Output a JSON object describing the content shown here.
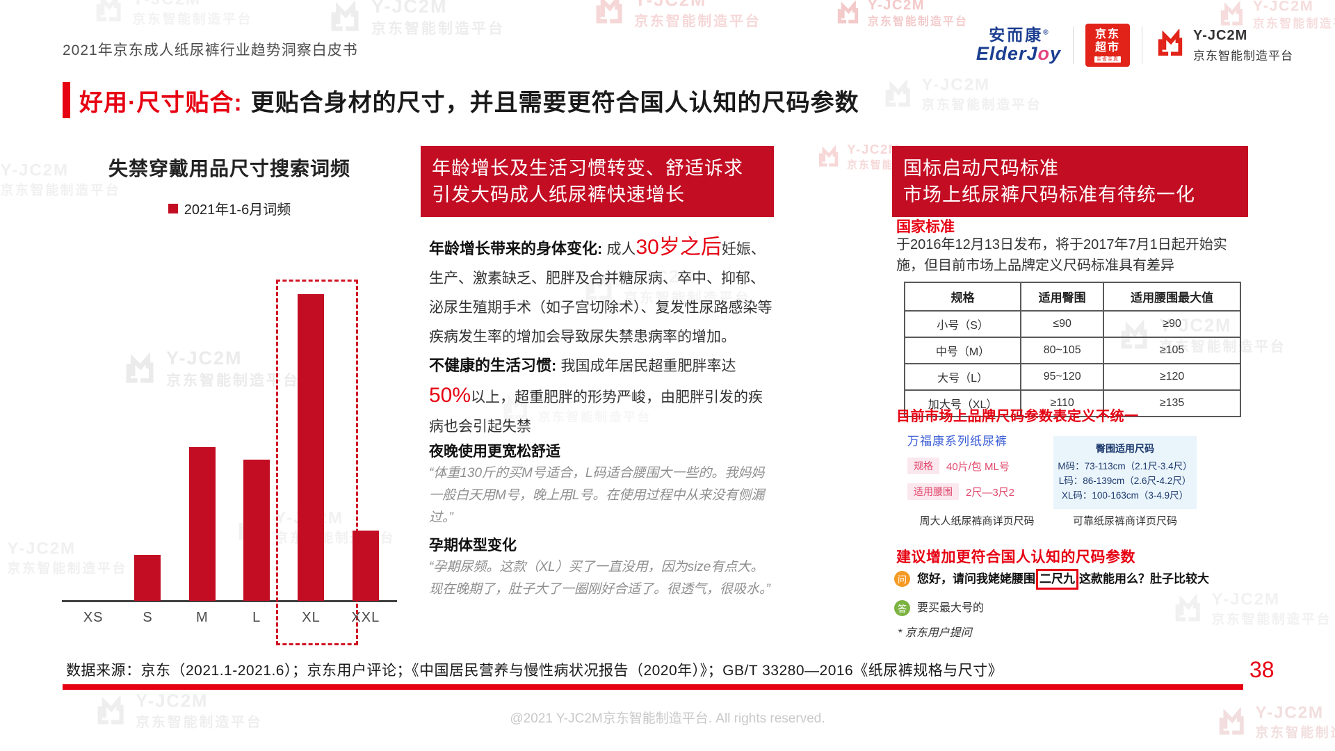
{
  "page": {
    "header_title": "2021年京东成人纸尿裤行业趋势洞察白皮书",
    "datasource": "数据来源：京东（2021.1-2021.6）；京东用户评论；《中国居民营养与慢性病状况报告（2020年）》；GB/T 33280—2016《纸尿裤规格与尺寸》",
    "page_number": "38",
    "footer": "@2021 Y-JC2M京东智能制造平台. All rights reserved.",
    "watermark": {
      "name": "Y-JC2M",
      "sub": "京东智能制造平台"
    }
  },
  "logos": {
    "elderjoy_cn": "安而康",
    "elderjoy_reg": "®",
    "elderjoy_en_pre": "ElderJ",
    "elderjoy_en_o": "o",
    "elderjoy_en_post": "y",
    "jd_market_line1": "京东",
    "jd_market_line2": "超市",
    "jd_market_sub": "至省至真",
    "yjc2m_name": "Y-JC2M",
    "yjc2m_sub": "京东智能制造平台"
  },
  "title": {
    "highlight": "好用·尺寸贴合:",
    "rest": "更贴合身材的尺寸，并且需要更符合国人认知的尺码参数"
  },
  "chart_data": {
    "type": "bar",
    "title": "失禁穿戴用品尺寸搜索词频",
    "legend": [
      "2021年1-6月词频"
    ],
    "legend_position": "top",
    "categories": [
      "XS",
      "S",
      "M",
      "L",
      "XL",
      "XXL"
    ],
    "series": [
      {
        "name": "2021年1-6月词频",
        "values": [
          0,
          15,
          50,
          46,
          100,
          23
        ]
      }
    ],
    "value_note": "relative search frequency, no numeric axis shown; XL = max = 100",
    "xlabel": "",
    "ylabel": "",
    "grid": false,
    "y_axis_visible": false,
    "bar_color": "#c30d23",
    "highlight": {
      "category": "XL",
      "style": "red dashed box around tallest bar"
    }
  },
  "mid": {
    "banner_line1": "年龄增长及生活习惯转变、舒适诉求",
    "banner_line2": "引发大码成人纸尿裤快速增长",
    "block1_title": "年龄增长带来的身体变化: ",
    "block1_pre": "成人",
    "block1_highlight": "30岁之后",
    "block1_rest": "妊娠、生产、激素缺乏、肥胖及合并糖尿病、卒中、抑郁、泌尿生殖期手术（如子宫切除术）、复发性尿路感染等疾病发生率的增加会导致尿失禁患病率的增加。",
    "block2_title": "不健康的生活习惯: ",
    "block2_pre": "我国成年居民超重肥胖率达",
    "block2_highlight": "50%",
    "block2_rest": "以上，超重肥胖的形势严峻，由肥胖引发的疾病也会引起失禁",
    "block3_title": "夜晚使用更宽松舒适",
    "block3_quote": "“体重130斤的买M号适合，L码适合腰围大一些的。我妈妈一般白天用M号，晚上用L号。在使用过程中从来没有侧漏过。”",
    "block4_title": "孕期体型变化",
    "block4_quote": "“孕期尿频。这款（XL）买了一直没用，因为size有点大。现在晚期了，肚子大了一圈刚好合适了。很透气，很吸水。”"
  },
  "right": {
    "banner_line1": "国标启动尺码标准",
    "banner_line2": "市场上纸尿裤尺码标准有待统一化",
    "std_label": "国家标准",
    "std_desc": "于2016年12月13日发布，将于2017年7月1日起开始实施，但目前市场上品牌定义尺码标准具有差异",
    "table": {
      "headers": [
        "规格",
        "适用臀围",
        "适用腰围最大值"
      ],
      "rows": [
        [
          "小号（S）",
          "≤90",
          "≥90"
        ],
        [
          "中号（M）",
          "80~105",
          "≥105"
        ],
        [
          "大号（L）",
          "95~120",
          "≥120"
        ],
        [
          "加大号（XL）",
          "≥110",
          "≥135"
        ]
      ]
    },
    "brands_heading": "目前市场上品牌尺码参数表定义不统一",
    "brand_left": {
      "name": "万福康系列纸尿裤",
      "tag1": "规格",
      "tag1_value": "40片/包 ML号",
      "tag2": "适用腰围",
      "tag2_value": "2尺—3尺2",
      "caption": "周大人纸尿裤商详页尺码"
    },
    "brand_right": {
      "header": "臀围适用尺码",
      "lines": [
        "M码：73-113cm（2.1尺-3.4尺）",
        "L码：86-139cm（2.6尺-4.2尺）",
        "XL码：100-163cm（3-4.9尺）"
      ],
      "caption": "可靠纸尿裤商详页尺码"
    },
    "suggest_heading": "建议增加更符合国人认知的尺码参数",
    "qa": {
      "q_icon": "问",
      "q_pre": "您好，请问我姥姥腰围",
      "q_boxed": "二尺九",
      "q_post": "这款能用么？肚子比较大",
      "a_icon": "答",
      "a_text": "要买最大号的",
      "note": "* 京东用户提问"
    }
  }
}
